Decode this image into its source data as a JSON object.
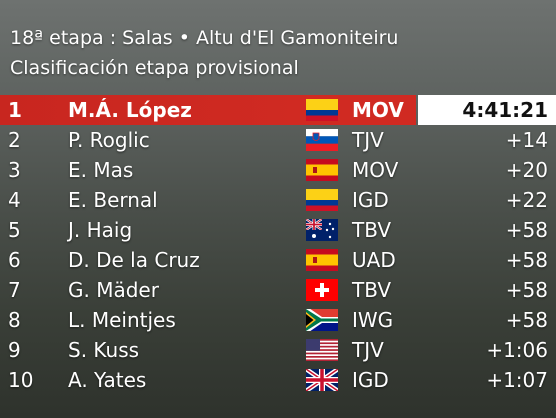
{
  "header": {
    "title": "18ª etapa : Salas • Altu d'El Gamoniteiru",
    "subtitle": "Clasificación etapa provisional"
  },
  "table": {
    "rows": [
      [
        "1",
        "M.Á. López",
        "MOV",
        "4:41:21"
      ],
      [
        "2",
        "P. Roglic",
        "TJV",
        "+14"
      ],
      [
        "3",
        "E. Mas",
        "MOV",
        "+20"
      ],
      [
        "4",
        "E. Bernal",
        "IGD",
        "+22"
      ],
      [
        "5",
        "J. Haig",
        "TBV",
        "+58"
      ],
      [
        "6",
        "D. De la Cruz",
        "UAD",
        "+58"
      ],
      [
        "7",
        "G. Mäder",
        "TBV",
        "+58"
      ],
      [
        "8",
        "L. Meintjes",
        "IWG",
        "+58"
      ],
      [
        "9",
        "S. Kuss",
        "TJV",
        "+1:06"
      ],
      [
        "10",
        "A. Yates",
        "IGD",
        "+1:07"
      ]
    ]
  }
}
